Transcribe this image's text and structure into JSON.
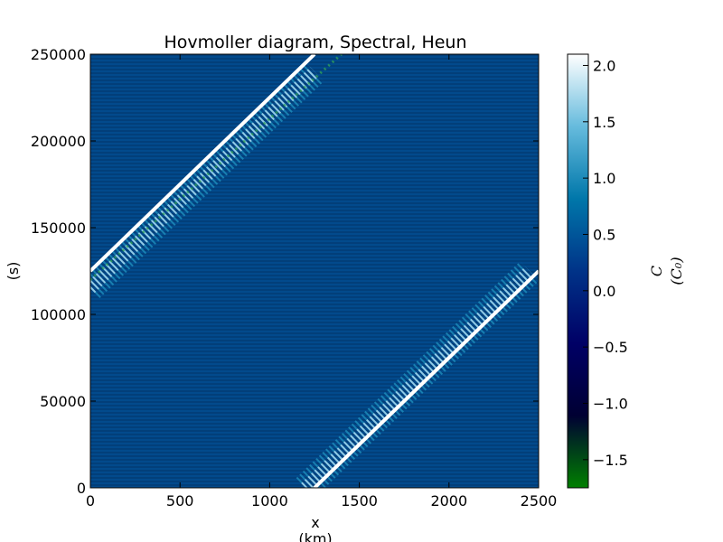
{
  "chart_data": {
    "type": "heatmap",
    "title": "Hovmoller diagram, Spectral, Heun",
    "xlabel": [
      "x",
      "(km)"
    ],
    "ylabel": "(s)",
    "xlim": [
      0,
      2500
    ],
    "ylim": [
      0,
      250000
    ],
    "x_ticks": [
      0,
      500,
      1000,
      1500,
      2000,
      2500
    ],
    "y_ticks": [
      0,
      50000,
      100000,
      150000,
      200000,
      250000
    ],
    "colorbar": {
      "label": [
        "C",
        "(C₀)"
      ],
      "range": [
        -1.75,
        2.1
      ],
      "ticks": [
        "−1.5",
        "−1.0",
        "−0.5",
        "0.0",
        "0.5",
        "1.0",
        "1.5",
        "2.0"
      ],
      "tick_values": [
        -1.5,
        -1.0,
        -0.5,
        0.0,
        0.5,
        1.0,
        1.5,
        2.0
      ],
      "colors": [
        "#008000",
        "#000033",
        "#000066",
        "#003388",
        "#0077aa",
        "#66bbdd",
        "#ffffff"
      ]
    },
    "background_value": 0.0,
    "characteristic_lines": [
      {
        "x": [
          1250,
          2500
        ],
        "y": [
          0,
          125000
        ]
      },
      {
        "x": [
          0,
          1250
        ],
        "y": [
          125000,
          250000
        ]
      }
    ],
    "numerical_pulse": [
      {
        "x": [
          1200,
          2450
        ],
        "y": [
          0,
          125000
        ],
        "value": 1.0
      },
      {
        "x": [
          0,
          1250
        ],
        "y": [
          115000,
          240000
        ],
        "value": 1.0
      }
    ],
    "trailing_ripple": [
      {
        "x": [
          0,
          1400
        ],
        "y": [
          120000,
          250000
        ],
        "value": -0.5
      }
    ]
  }
}
